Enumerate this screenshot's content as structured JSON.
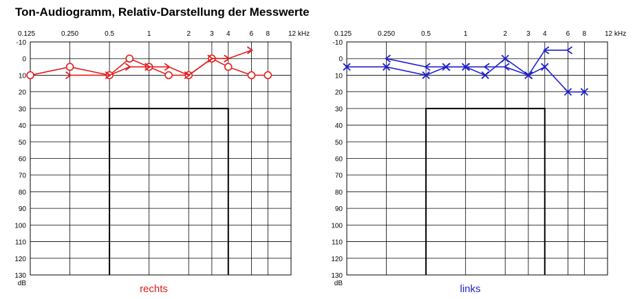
{
  "title": "Ton-Audiogramm, Relativ-Darstellung der Messwerte",
  "chart_data": [
    {
      "type": "line",
      "label": "rechts",
      "color": "#e31b1b",
      "freq_ticks": [
        {
          "value": 0.125,
          "label": "0.125"
        },
        {
          "value": 0.25,
          "label": "0.250"
        },
        {
          "value": 0.5,
          "label": "0.5"
        },
        {
          "value": 1,
          "label": "1"
        },
        {
          "value": 2,
          "label": "2"
        },
        {
          "value": 3,
          "label": "3"
        },
        {
          "value": 4,
          "label": "4"
        },
        {
          "value": 6,
          "label": "6"
        },
        {
          "value": 8,
          "label": "8"
        },
        {
          "value": 12,
          "label": "12 kHz"
        }
      ],
      "xscale": "log",
      "xlim": [
        0.125,
        12
      ],
      "db_ticks": [
        -10,
        0,
        10,
        20,
        30,
        40,
        50,
        60,
        70,
        80,
        90,
        100,
        110,
        120,
        130
      ],
      "ylim": [
        -10,
        130
      ],
      "y_inverted": true,
      "ylabel": "dB",
      "grid": true,
      "box": {
        "x": [
          0.5,
          4
        ],
        "y": [
          30,
          130
        ]
      },
      "series": [
        {
          "marker": "circle",
          "x": [
            0.125,
            0.25,
            0.5,
            0.71,
            1,
            1.41,
            2,
            3,
            4,
            6,
            8
          ],
          "y": [
            10,
            5,
            10,
            0,
            5,
            10,
            10,
            0,
            5,
            10,
            10
          ]
        },
        {
          "marker": "arrow-right",
          "x": [
            0.25,
            0.5,
            0.71,
            1,
            1.41,
            2,
            3,
            4,
            6
          ],
          "y": [
            10,
            10,
            5,
            5,
            5,
            10,
            0,
            0,
            -5
          ]
        }
      ]
    },
    {
      "type": "line",
      "label": "links",
      "color": "#1f1fcf",
      "freq_ticks": [
        {
          "value": 0.125,
          "label": "0.125"
        },
        {
          "value": 0.25,
          "label": "0.250"
        },
        {
          "value": 0.5,
          "label": "0.5"
        },
        {
          "value": 1,
          "label": "1"
        },
        {
          "value": 2,
          "label": "2"
        },
        {
          "value": 3,
          "label": "3"
        },
        {
          "value": 4,
          "label": "4"
        },
        {
          "value": 6,
          "label": "6"
        },
        {
          "value": 8,
          "label": "8"
        },
        {
          "value": 12,
          "label": "12 kHz"
        }
      ],
      "xscale": "log",
      "xlim": [
        0.125,
        12
      ],
      "db_ticks": [
        -10,
        0,
        10,
        20,
        30,
        40,
        50,
        60,
        70,
        80,
        90,
        100,
        110,
        120,
        130
      ],
      "ylim": [
        -10,
        130
      ],
      "y_inverted": true,
      "ylabel": "dB",
      "grid": true,
      "box": {
        "x": [
          0.5,
          4
        ],
        "y": [
          30,
          130
        ]
      },
      "series": [
        {
          "marker": "cross",
          "x": [
            0.125,
            0.25,
            0.5,
            0.71,
            1,
            1.41,
            2,
            3,
            4,
            6,
            8
          ],
          "y": [
            5,
            5,
            10,
            5,
            5,
            10,
            0,
            10,
            5,
            20,
            20
          ]
        },
        {
          "marker": "arrow-left",
          "x": [
            0.25,
            0.5,
            0.71,
            1,
            1.41,
            2,
            3,
            4,
            6
          ],
          "y": [
            0,
            5,
            5,
            5,
            5,
            5,
            10,
            -5,
            -5
          ]
        }
      ]
    }
  ]
}
